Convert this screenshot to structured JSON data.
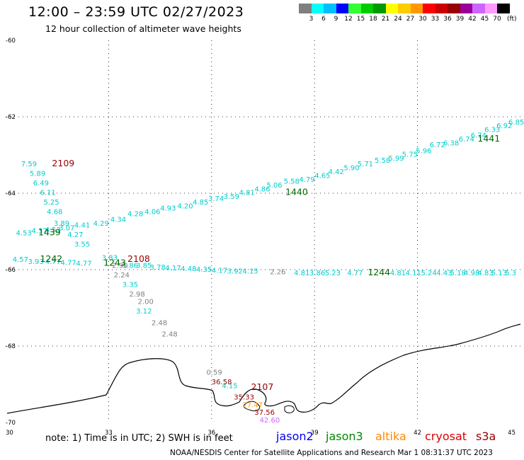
{
  "header": {
    "title": "12:00 – 23:59 UTC 02/27/2023",
    "subtitle": "12 hour collection of altimeter wave heights"
  },
  "legend": {
    "colors": [
      "#7f7f7f",
      "#00ffff",
      "#00bfff",
      "#0000ff",
      "#33ff33",
      "#00cc00",
      "#009900",
      "#ffff00",
      "#ffcc00",
      "#ff9900",
      "#ff0000",
      "#cc0000",
      "#990000",
      "#990099",
      "#cc66ff",
      "#ff99ff",
      "#000000"
    ],
    "labels": [
      "3",
      "6",
      "9",
      "12",
      "15",
      "18",
      "21",
      "24",
      "27",
      "30",
      "33",
      "36",
      "39",
      "42",
      "45",
      "70"
    ],
    "unit": "(ft)"
  },
  "axes": {
    "lat_ticks": [
      "-60",
      "-62",
      "-64",
      "-66",
      "-68",
      "-70"
    ],
    "lon_ticks": [
      "30",
      "33",
      "36",
      "39",
      "42",
      "45"
    ]
  },
  "footer": {
    "note": "note:  1) Time is in UTC;  2) SWH is in feet",
    "satellites": [
      {
        "name": "jason2",
        "color": "#0000ee"
      },
      {
        "name": "jason3",
        "color": "#008800"
      },
      {
        "name": "altika",
        "color": "#ff8800"
      },
      {
        "name": "cryosat",
        "color": "#dd0000"
      },
      {
        "name": "s3a",
        "color": "#990000"
      }
    ],
    "credit": "NOAA/NESDIS Center for Satellite Applications and Research    Mar  1 08:31:37 UTC 2023"
  },
  "map_labels": [
    {
      "t": "7.59",
      "lat": -63.3,
      "lon": 30.45,
      "c": "#00cccc"
    },
    {
      "t": "5.89",
      "lat": -63.55,
      "lon": 30.7,
      "c": "#00cccc"
    },
    {
      "t": "6.49",
      "lat": -63.8,
      "lon": 30.8,
      "c": "#00cccc"
    },
    {
      "t": "6.11",
      "lat": -64.05,
      "lon": 31.0,
      "c": "#00cccc"
    },
    {
      "t": "5.25",
      "lat": -64.3,
      "lon": 31.1,
      "c": "#00cccc"
    },
    {
      "t": "4.68",
      "lat": -64.55,
      "lon": 31.2,
      "c": "#00cccc"
    },
    {
      "t": "3.89",
      "lat": -64.85,
      "lon": 31.4,
      "c": "#00cccc"
    },
    {
      "t": "4.53",
      "lat": -65.1,
      "lon": 30.3,
      "c": "#00cccc"
    },
    {
      "t": "4.37",
      "lat": -65.05,
      "lon": 30.75,
      "c": "#00cccc"
    },
    {
      "t": "4.52",
      "lat": -65.02,
      "lon": 31.15,
      "c": "#00cccc"
    },
    {
      "t": "3.07",
      "lat": -64.97,
      "lon": 31.55,
      "c": "#00cccc"
    },
    {
      "t": "4.41",
      "lat": -64.9,
      "lon": 32.0,
      "c": "#00cccc"
    },
    {
      "t": "4.27",
      "lat": -65.15,
      "lon": 31.8,
      "c": "#00cccc"
    },
    {
      "t": "3.55",
      "lat": -65.4,
      "lon": 32.0,
      "c": "#00cccc"
    },
    {
      "t": "4.29",
      "lat": -64.85,
      "lon": 32.55,
      "c": "#00cccc"
    },
    {
      "t": "4.34",
      "lat": -64.75,
      "lon": 33.05,
      "c": "#00cccc"
    },
    {
      "t": "4.28",
      "lat": -64.6,
      "lon": 33.55,
      "c": "#00cccc"
    },
    {
      "t": "4.06",
      "lat": -64.55,
      "lon": 34.05,
      "c": "#00cccc"
    },
    {
      "t": "4.93",
      "lat": -64.45,
      "lon": 34.5,
      "c": "#00cccc"
    },
    {
      "t": "4.20",
      "lat": -64.4,
      "lon": 35.0,
      "c": "#00cccc"
    },
    {
      "t": "4.85",
      "lat": -64.3,
      "lon": 35.45,
      "c": "#00cccc"
    },
    {
      "t": "3.74",
      "lat": -64.2,
      "lon": 35.9,
      "c": "#00cccc"
    },
    {
      "t": "3.59",
      "lat": -64.15,
      "lon": 36.35,
      "c": "#00cccc"
    },
    {
      "t": "4.81",
      "lat": -64.05,
      "lon": 36.8,
      "c": "#00cccc"
    },
    {
      "t": "4.86",
      "lat": -63.95,
      "lon": 37.25,
      "c": "#00cccc"
    },
    {
      "t": "5.06",
      "lat": -63.85,
      "lon": 37.6,
      "c": "#00cccc"
    },
    {
      "t": "5.58",
      "lat": -63.75,
      "lon": 38.1,
      "c": "#00cccc"
    },
    {
      "t": "4.79",
      "lat": -63.7,
      "lon": 38.55,
      "c": "#00cccc"
    },
    {
      "t": "4.65",
      "lat": -63.6,
      "lon": 39.0,
      "c": "#00cccc"
    },
    {
      "t": "4.42",
      "lat": -63.5,
      "lon": 39.4,
      "c": "#00cccc"
    },
    {
      "t": "5.90",
      "lat": -63.4,
      "lon": 39.85,
      "c": "#00cccc"
    },
    {
      "t": "5.71",
      "lat": -63.3,
      "lon": 40.25,
      "c": "#00cccc"
    },
    {
      "t": "5.58",
      "lat": -63.2,
      "lon": 40.75,
      "c": "#00cccc"
    },
    {
      "t": "5.99",
      "lat": -63.15,
      "lon": 41.15,
      "c": "#00cccc"
    },
    {
      "t": "5.75",
      "lat": -63.05,
      "lon": 41.55,
      "c": "#00cccc"
    },
    {
      "t": "5.96",
      "lat": -62.95,
      "lon": 41.95,
      "c": "#00cccc"
    },
    {
      "t": "6.72",
      "lat": -62.8,
      "lon": 42.35,
      "c": "#00cccc"
    },
    {
      "t": "6.38",
      "lat": -62.75,
      "lon": 42.75,
      "c": "#00cccc"
    },
    {
      "t": "6.74",
      "lat": -62.65,
      "lon": 43.2,
      "c": "#00cccc"
    },
    {
      "t": "6.74",
      "lat": -62.55,
      "lon": 43.55,
      "c": "#00cccc"
    },
    {
      "t": "6.33",
      "lat": -62.4,
      "lon": 43.95,
      "c": "#00cccc"
    },
    {
      "t": "6.92",
      "lat": -62.3,
      "lon": 44.3,
      "c": "#00cccc"
    },
    {
      "t": "6.85",
      "lat": -62.2,
      "lon": 44.65,
      "c": "#00cccc"
    },
    {
      "t": "4.57",
      "lat": -65.8,
      "lon": 30.2,
      "c": "#00cccc"
    },
    {
      "t": "3.93",
      "lat": -65.85,
      "lon": 30.65,
      "c": "#00cccc"
    },
    {
      "t": "4.77",
      "lat": -65.85,
      "lon": 31.15,
      "c": "#00cccc"
    },
    {
      "t": "4.77",
      "lat": -65.88,
      "lon": 31.6,
      "c": "#00cccc"
    },
    {
      "t": "4.77",
      "lat": -65.9,
      "lon": 32.05,
      "c": "#00cccc"
    },
    {
      "t": "3.83",
      "lat": -65.75,
      "lon": 32.8,
      "c": "#00cccc"
    },
    {
      "t": "5.86",
      "lat": -65.95,
      "lon": 33.4,
      "c": "#00cccc"
    },
    {
      "t": "3.85",
      "lat": -65.95,
      "lon": 33.8,
      "c": "#00cccc"
    },
    {
      "t": "3.78",
      "lat": -66.0,
      "lon": 34.2,
      "c": "#00cccc"
    },
    {
      "t": "4.17",
      "lat": -66.02,
      "lon": 34.65,
      "c": "#00cccc"
    },
    {
      "t": "4.48",
      "lat": -66.04,
      "lon": 35.1,
      "c": "#00cccc"
    },
    {
      "t": "4.35",
      "lat": -66.06,
      "lon": 35.55,
      "c": "#00cccc"
    },
    {
      "t": "4.17",
      "lat": -66.08,
      "lon": 36.0,
      "c": "#00cccc"
    },
    {
      "t": "3.92",
      "lat": -66.1,
      "lon": 36.45,
      "c": "#00cccc"
    },
    {
      "t": "4.15",
      "lat": -66.1,
      "lon": 36.9,
      "c": "#00cccc"
    },
    {
      "t": "4.81",
      "lat": -66.15,
      "lon": 38.4,
      "c": "#00cccc"
    },
    {
      "t": "3.86",
      "lat": -66.15,
      "lon": 38.85,
      "c": "#00cccc"
    },
    {
      "t": "5.23",
      "lat": -66.15,
      "lon": 39.3,
      "c": "#00cccc"
    },
    {
      "t": "4.77",
      "lat": -66.15,
      "lon": 39.95,
      "c": "#00cccc"
    },
    {
      "t": "4.81",
      "lat": -66.15,
      "lon": 41.2,
      "c": "#00cccc"
    },
    {
      "t": "4.11",
      "lat": -66.15,
      "lon": 41.65,
      "c": "#00cccc"
    },
    {
      "t": "5.24",
      "lat": -66.15,
      "lon": 42.1,
      "c": "#00cccc"
    },
    {
      "t": "4.43",
      "lat": -66.15,
      "lon": 42.55,
      "c": "#00cccc"
    },
    {
      "t": "5.18",
      "lat": -66.15,
      "lon": 42.95,
      "c": "#00cccc"
    },
    {
      "t": "4.98",
      "lat": -66.15,
      "lon": 43.35,
      "c": "#00cccc"
    },
    {
      "t": "4.83",
      "lat": -66.15,
      "lon": 43.75,
      "c": "#00cccc"
    },
    {
      "t": "5.13",
      "lat": -66.15,
      "lon": 44.15,
      "c": "#00cccc"
    },
    {
      "t": "5.3",
      "lat": -66.15,
      "lon": 44.55,
      "c": "#00cccc"
    },
    {
      "t": "3.35",
      "lat": -66.45,
      "lon": 33.4,
      "c": "#00cccc"
    },
    {
      "t": "3.12",
      "lat": -67.15,
      "lon": 33.8,
      "c": "#00cccc"
    },
    {
      "t": "4.15",
      "lat": -69.1,
      "lon": 36.3,
      "c": "#00cccc"
    },
    {
      "t": "2.90",
      "lat": -65.95,
      "lon": 33.1,
      "c": "#808080"
    },
    {
      "t": "2.24",
      "lat": -66.2,
      "lon": 33.15,
      "c": "#808080"
    },
    {
      "t": "2.98",
      "lat": -66.7,
      "lon": 33.6,
      "c": "#808080"
    },
    {
      "t": "2.00",
      "lat": -66.9,
      "lon": 33.85,
      "c": "#808080"
    },
    {
      "t": "2.48",
      "lat": -67.45,
      "lon": 34.25,
      "c": "#808080"
    },
    {
      "t": "2.48",
      "lat": -67.75,
      "lon": 34.55,
      "c": "#808080"
    },
    {
      "t": "2.26",
      "lat": -66.12,
      "lon": 37.7,
      "c": "#808080"
    },
    {
      "t": "0.59",
      "lat": -68.75,
      "lon": 35.85,
      "c": "#808080"
    },
    {
      "t": "36.58",
      "lat": -69.0,
      "lon": 36.0,
      "c": "#990000"
    },
    {
      "t": "35.33",
      "lat": -69.4,
      "lon": 36.65,
      "c": "#990000"
    },
    {
      "t": "37.56",
      "lat": -69.8,
      "lon": 37.25,
      "c": "#990000"
    },
    {
      "t": "27.47",
      "lat": -69.6,
      "lon": 36.9,
      "c": "#ff9900"
    },
    {
      "t": "42.60",
      "lat": -70.0,
      "lon": 37.4,
      "c": "#cc66ff"
    }
  ],
  "time_labels": [
    {
      "t": "2109",
      "lat": -63.3,
      "lon": 31.35,
      "c": "#990000"
    },
    {
      "t": "1439",
      "lat": -65.1,
      "lon": 30.95,
      "c": "#006600"
    },
    {
      "t": "1242",
      "lat": -65.8,
      "lon": 31.0,
      "c": "#006600"
    },
    {
      "t": "1243",
      "lat": -65.9,
      "lon": 32.85,
      "c": "#006600"
    },
    {
      "t": "2108",
      "lat": -65.8,
      "lon": 33.55,
      "c": "#990000"
    },
    {
      "t": "1440",
      "lat": -64.05,
      "lon": 38.15,
      "c": "#006600"
    },
    {
      "t": "1441",
      "lat": -62.65,
      "lon": 43.75,
      "c": "#006600"
    },
    {
      "t": "1244",
      "lat": -66.15,
      "lon": 40.55,
      "c": "#006600"
    },
    {
      "t": "2107",
      "lat": -69.15,
      "lon": 37.15,
      "c": "#990000"
    }
  ]
}
